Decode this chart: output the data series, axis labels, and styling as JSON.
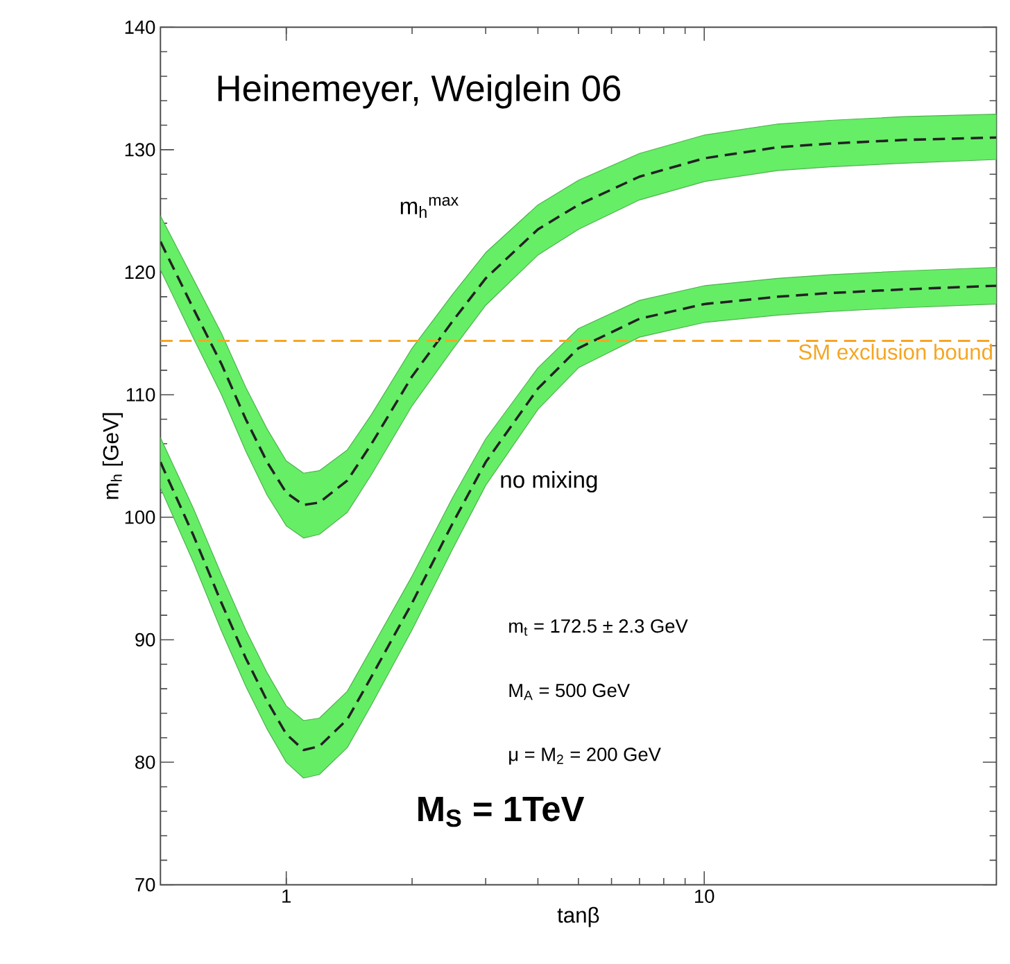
{
  "chart_data": {
    "type": "line",
    "xlabel": "tanβ",
    "ylabel": "m$_{h}$ [GeV]",
    "log": "x",
    "x": [
      0.5,
      0.6,
      0.7,
      0.8,
      0.9,
      1.0,
      1.1,
      1.2,
      1.4,
      1.6,
      2,
      2.5,
      3,
      4,
      5,
      7,
      10,
      15,
      20,
      30,
      50
    ],
    "series": [
      {
        "name": "m$_{h}$$^{max}$",
        "color": "#222222",
        "line_style": "dashed",
        "values": [
          122.5,
          117,
          112.5,
          108,
          104.5,
          102,
          101,
          101.2,
          103,
          106,
          111.5,
          116,
          119.5,
          123.5,
          125.5,
          127.8,
          129.3,
          130.2,
          130.5,
          130.8,
          131
        ],
        "upper": [
          124.6,
          119.4,
          115,
          110.6,
          107.2,
          104.6,
          103.6,
          103.8,
          105.5,
          108.4,
          113.8,
          118.2,
          121.6,
          125.5,
          127.5,
          129.7,
          131.2,
          132.1,
          132.4,
          132.7,
          132.9
        ],
        "lower": [
          120.2,
          114.6,
          110,
          105.4,
          101.8,
          99.3,
          98.3,
          98.6,
          100.4,
          103.5,
          109.1,
          113.7,
          117.3,
          121.4,
          123.5,
          125.9,
          127.4,
          128.3,
          128.6,
          128.9,
          129.2
        ]
      },
      {
        "name": "no mixing",
        "color": "#222222",
        "line_style": "dashed",
        "values": [
          104.5,
          98.5,
          93,
          88.5,
          85,
          82.3,
          81,
          81.3,
          83.5,
          87,
          93,
          99.5,
          104.5,
          110.5,
          113.8,
          116.2,
          117.4,
          118,
          118.3,
          118.6,
          118.9
        ],
        "upper": [
          106.5,
          100.7,
          95.3,
          90.8,
          87.3,
          84.6,
          83.4,
          83.6,
          85.8,
          89.3,
          95.2,
          101.6,
          106.4,
          112.2,
          115.4,
          117.7,
          118.9,
          119.5,
          119.8,
          120.1,
          120.4
        ],
        "lower": [
          102.4,
          96.3,
          90.7,
          86.2,
          82.7,
          80,
          78.7,
          79,
          81.2,
          84.7,
          90.8,
          97.4,
          102.6,
          108.8,
          112.2,
          114.7,
          115.9,
          116.5,
          116.8,
          117.1,
          117.4
        ]
      }
    ],
    "xlim": [
      0.5,
      50
    ],
    "ylim": [
      70,
      140
    ],
    "xticks": [
      1,
      10
    ],
    "yticks": [
      70,
      80,
      90,
      100,
      110,
      120,
      130,
      140
    ],
    "marker": "none",
    "grid": false,
    "legend": false,
    "ref_lines": [
      {
        "axis": "y",
        "value": 114.4,
        "label": "SM exclusion bound",
        "color": "#f5a623",
        "line_style": "dashed"
      }
    ],
    "annotations": [
      "Heinemeyer, Weiglein 06",
      "m$_{t}$ = 172.5 ± 2.3 GeV",
      "M$_{A}$ = 500 GeV",
      "μ = M$_{2}$ = 200 GeV",
      "M$_{S}$ = 1TeV"
    ]
  }
}
